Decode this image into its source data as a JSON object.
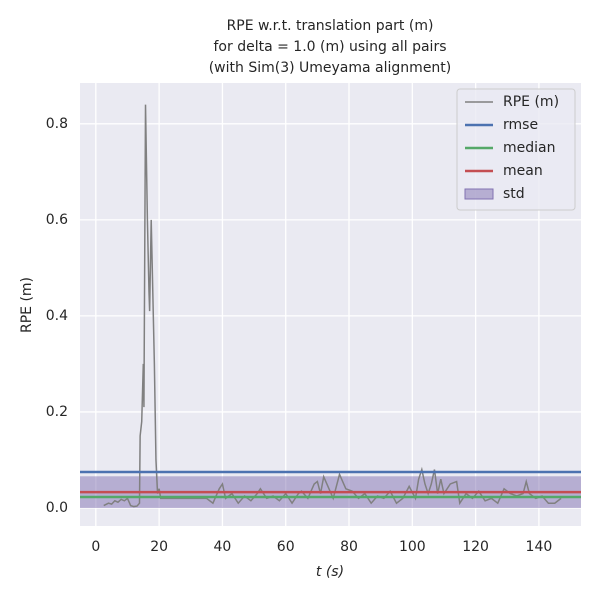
{
  "chart_data": {
    "type": "line",
    "title": [
      "RPE w.r.t. translation part (m)",
      "for delta = 1.0 (m) using all pairs",
      "(with Sim(3) Umeyama alignment)"
    ],
    "xlabel": "t (s)",
    "ylabel": "RPE (m)",
    "xlim": [
      -5,
      153.3
    ],
    "ylim": [
      -0.0375,
      0.885
    ],
    "xticks": [
      0,
      20,
      40,
      60,
      80,
      100,
      120,
      140
    ],
    "yticks": [
      {
        "value": 0,
        "label": "0.0"
      },
      0.2,
      0.4,
      0.6,
      0.8
    ],
    "grid": true,
    "legend": "upper right",
    "series": [
      {
        "name": "RPE (m)",
        "color": "#808080",
        "x": [
          2.5,
          4,
          5,
          6,
          7,
          8,
          9,
          10,
          11,
          12,
          13,
          13.8,
          14,
          14.5,
          15,
          15.2,
          15.7,
          16.3,
          16.8,
          17,
          17.5,
          18,
          18.5,
          19,
          19.5,
          20,
          20.5,
          25,
          30,
          35,
          37,
          39,
          40,
          41,
          43,
          45,
          47,
          49,
          51,
          52,
          54,
          56,
          58,
          60,
          62,
          64,
          65,
          67,
          69,
          70,
          71,
          72,
          73,
          75,
          77,
          79,
          81,
          83,
          85,
          87,
          89,
          91,
          93,
          95,
          97,
          99,
          101,
          102,
          103,
          104,
          105,
          106,
          107,
          108,
          109,
          110,
          112,
          114,
          115,
          117,
          119,
          121,
          123,
          125,
          127,
          129,
          131,
          133,
          135,
          136,
          137,
          139,
          141,
          143,
          145,
          147
        ],
        "values": [
          0.005,
          0.01,
          0.008,
          0.015,
          0.012,
          0.018,
          0.015,
          0.02,
          0.005,
          0.003,
          0.004,
          0.01,
          0.15,
          0.18,
          0.3,
          0.21,
          0.84,
          0.6,
          0.45,
          0.41,
          0.6,
          0.45,
          0.3,
          0.1,
          0.03,
          0.04,
          0.02,
          0.02,
          0.02,
          0.02,
          0.01,
          0.04,
          0.05,
          0.02,
          0.03,
          0.01,
          0.025,
          0.015,
          0.03,
          0.04,
          0.02,
          0.025,
          0.015,
          0.03,
          0.01,
          0.03,
          0.035,
          0.02,
          0.05,
          0.055,
          0.03,
          0.065,
          0.05,
          0.02,
          0.07,
          0.04,
          0.035,
          0.02,
          0.03,
          0.01,
          0.025,
          0.02,
          0.035,
          0.01,
          0.02,
          0.045,
          0.02,
          0.06,
          0.08,
          0.05,
          0.03,
          0.05,
          0.08,
          0.03,
          0.06,
          0.03,
          0.05,
          0.055,
          0.01,
          0.03,
          0.02,
          0.035,
          0.015,
          0.02,
          0.01,
          0.04,
          0.03,
          0.025,
          0.03,
          0.055,
          0.03,
          0.02,
          0.025,
          0.01,
          0.01,
          0.02
        ]
      }
    ],
    "hlines": [
      {
        "name": "rmse",
        "color": "#4c72b0",
        "value": 0.075
      },
      {
        "name": "median",
        "color": "#55a868",
        "value": 0.023
      },
      {
        "name": "mean",
        "color": "#c44e52",
        "value": 0.033
      }
    ],
    "band": {
      "name": "std",
      "color": "#8172b2",
      "value": 0.033
    }
  }
}
